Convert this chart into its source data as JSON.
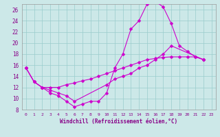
{
  "xlabel": "Windchill (Refroidissement éolien,°C)",
  "bg_color": "#cce8e8",
  "grid_color": "#99cccc",
  "line_color": "#cc00cc",
  "xlim": [
    -0.5,
    23.5
  ],
  "ylim": [
    8,
    27
  ],
  "yticks": [
    8,
    10,
    12,
    14,
    16,
    18,
    20,
    22,
    24,
    26
  ],
  "xticks": [
    0,
    1,
    2,
    3,
    4,
    5,
    6,
    7,
    8,
    9,
    10,
    11,
    12,
    13,
    14,
    15,
    16,
    17,
    18,
    19,
    20,
    21,
    22,
    23
  ],
  "line1_x": [
    0,
    1,
    2,
    3,
    4,
    5,
    6,
    7,
    8,
    9,
    10,
    11,
    12,
    13,
    14,
    15,
    16,
    17,
    18,
    19,
    20,
    21,
    22
  ],
  "line1_y": [
    15.5,
    13.0,
    12.0,
    11.0,
    10.5,
    9.5,
    8.5,
    9.0,
    9.5,
    9.5,
    11.0,
    15.5,
    18.0,
    22.5,
    24.0,
    27.0,
    27.5,
    26.5,
    23.5,
    19.5,
    18.5,
    17.5,
    17.0
  ],
  "line2_x": [
    0,
    1,
    2,
    3,
    4,
    5,
    6,
    10,
    11,
    12,
    13,
    14,
    15,
    16,
    17,
    18,
    22
  ],
  "line2_y": [
    15.5,
    13.0,
    12.0,
    11.5,
    11.0,
    10.5,
    9.5,
    12.5,
    13.5,
    14.0,
    14.5,
    15.5,
    16.0,
    17.0,
    18.0,
    19.5,
    17.0
  ],
  "line3_x": [
    0,
    1,
    2,
    3,
    4,
    5,
    6,
    7,
    8,
    9,
    10,
    11,
    12,
    13,
    14,
    15,
    16,
    17,
    18,
    19,
    20,
    21,
    22
  ],
  "line3_y": [
    15.5,
    13.0,
    12.0,
    12.0,
    12.0,
    12.5,
    12.8,
    13.2,
    13.5,
    14.0,
    14.5,
    15.0,
    15.5,
    16.0,
    16.5,
    17.0,
    17.2,
    17.4,
    17.5,
    17.5,
    17.5,
    17.5,
    17.0
  ],
  "marker": "D",
  "markersize": 2.5,
  "lw": 0.8
}
